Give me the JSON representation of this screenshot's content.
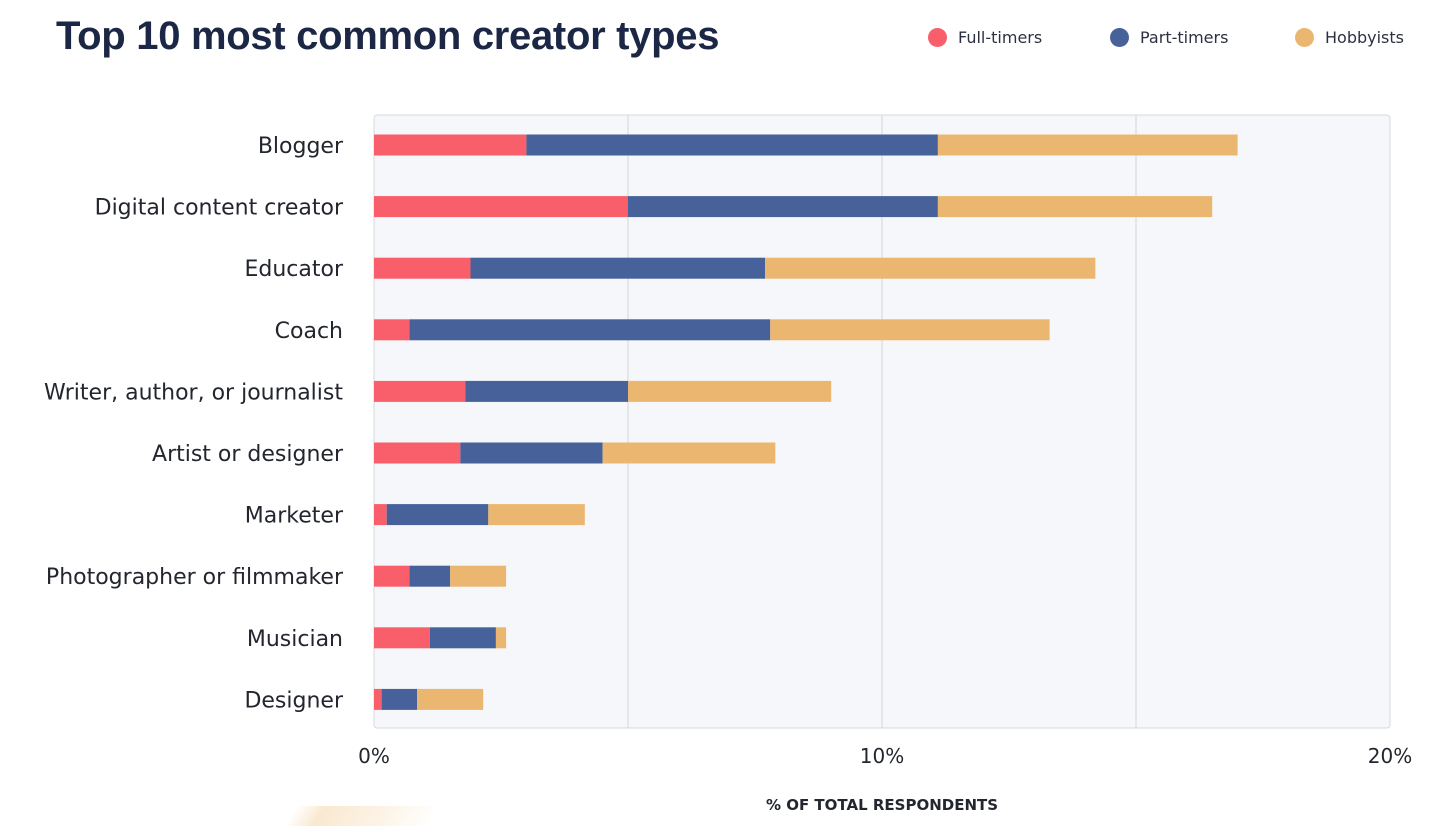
{
  "chart_data": {
    "type": "bar",
    "orientation": "horizontal",
    "stacked": true,
    "title": "Top 10 most common creator types",
    "xlabel": "% OF TOTAL RESPONDENTS",
    "xlim": [
      0,
      20
    ],
    "x_ticks": [
      0,
      10,
      20
    ],
    "x_tick_labels": [
      "0%",
      "10%",
      "20%"
    ],
    "grid": true,
    "legend_position": "top-right",
    "categories": [
      "Blogger",
      "Digital content creator",
      "Educator",
      "Coach",
      "Writer, author, or journalist",
      "Artist or designer",
      "Marketer",
      "Photographer or filmmaker",
      "Musician",
      "Designer"
    ],
    "series": [
      {
        "name": "Full-timers",
        "color": "#f85f6a",
        "values": [
          3.0,
          5.0,
          1.9,
          0.7,
          1.8,
          1.7,
          0.25,
          0.7,
          1.1,
          0.15
        ]
      },
      {
        "name": "Part-timers",
        "color": "#47619b",
        "values": [
          8.1,
          6.1,
          5.8,
          7.1,
          3.2,
          2.8,
          2.0,
          0.8,
          1.3,
          0.7
        ]
      },
      {
        "name": "Hobbyists",
        "color": "#ebb770",
        "values": [
          5.9,
          5.4,
          6.5,
          5.5,
          4.0,
          3.4,
          1.9,
          1.1,
          0.2,
          1.3
        ]
      }
    ]
  }
}
